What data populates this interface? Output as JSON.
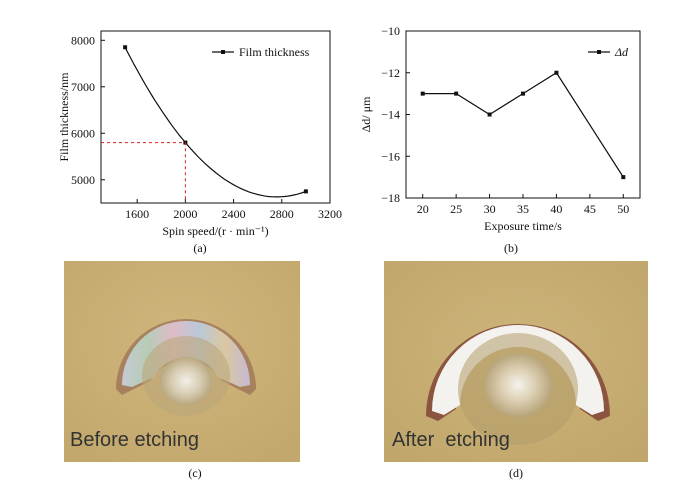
{
  "chart_data": [
    {
      "type": "line",
      "xlabel": "Spin speed/(r · min⁻¹)",
      "ylabel": "Film thickness/nm",
      "xlim": [
        1300,
        3200
      ],
      "ylim": [
        4500,
        8200
      ],
      "xticks": [
        1600,
        2000,
        2400,
        2800,
        3200
      ],
      "yticks": [
        5000,
        6000,
        7000,
        8000
      ],
      "grid": false,
      "legend_position": "top-right",
      "series": [
        {
          "name": "Film thickness",
          "x": [
            1500,
            2000,
            3000
          ],
          "y": [
            7850,
            5800,
            4750
          ]
        }
      ],
      "annotation": {
        "x": 2000,
        "y": 5800,
        "style": "red dashed guide to axes"
      }
    },
    {
      "type": "line",
      "xlabel": "Exposure time/s",
      "ylabel": "Δd/ μm",
      "xlim": [
        17.5,
        52.5
      ],
      "ylim": [
        -18,
        -10
      ],
      "xticks": [
        20,
        25,
        30,
        35,
        40,
        45,
        50
      ],
      "yticks": [
        -10,
        -12,
        -14,
        -16,
        -18
      ],
      "grid": false,
      "legend_position": "top-right",
      "series": [
        {
          "name": "Δd",
          "x": [
            20,
            25,
            30,
            35,
            40,
            50
          ],
          "y": [
            -13,
            -13,
            -14,
            -13,
            -12,
            -17
          ]
        }
      ]
    }
  ],
  "captions": {
    "a": "(a)",
    "b": "(b)",
    "c": "(c)",
    "d": "(d)"
  },
  "photos": {
    "before_label": "Before etching",
    "after_label": "After  etching"
  },
  "colors": {
    "line": "#111111",
    "guide": "#d62020",
    "substrate": "#c7ae72",
    "etched_region": "#f4f2ee"
  }
}
